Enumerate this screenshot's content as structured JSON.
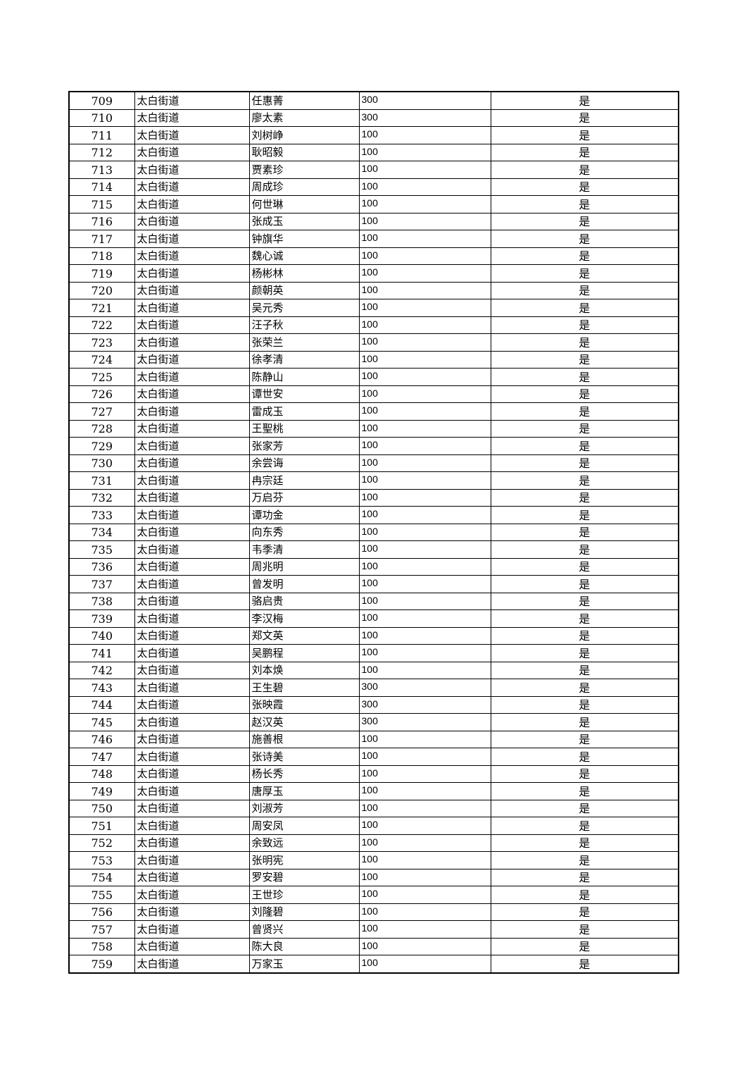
{
  "table": {
    "rows": [
      [
        "709",
        "太白街道",
        "任惠菁",
        "300",
        "是"
      ],
      [
        "710",
        "太白街道",
        "廖太素",
        "300",
        "是"
      ],
      [
        "711",
        "太白街道",
        "刘树峥",
        "100",
        "是"
      ],
      [
        "712",
        "太白街道",
        "耿昭毅",
        "100",
        "是"
      ],
      [
        "713",
        "太白街道",
        "贾素珍",
        "100",
        "是"
      ],
      [
        "714",
        "太白街道",
        "周成珍",
        "100",
        "是"
      ],
      [
        "715",
        "太白街道",
        "何世琳",
        "100",
        "是"
      ],
      [
        "716",
        "太白街道",
        "张成玉",
        "100",
        "是"
      ],
      [
        "717",
        "太白街道",
        "钟旗华",
        "100",
        "是"
      ],
      [
        "718",
        "太白街道",
        "魏心诚",
        "100",
        "是"
      ],
      [
        "719",
        "太白街道",
        "杨彬林",
        "100",
        "是"
      ],
      [
        "720",
        "太白街道",
        "颜朝英",
        "100",
        "是"
      ],
      [
        "721",
        "太白街道",
        "吴元秀",
        "100",
        "是"
      ],
      [
        "722",
        "太白街道",
        "汪子秋",
        "100",
        "是"
      ],
      [
        "723",
        "太白街道",
        "张荣兰",
        "100",
        "是"
      ],
      [
        "724",
        "太白街道",
        "徐孝清",
        "100",
        "是"
      ],
      [
        "725",
        "太白街道",
        "陈静山",
        "100",
        "是"
      ],
      [
        "726",
        "太白街道",
        "谭世安",
        "100",
        "是"
      ],
      [
        "727",
        "太白街道",
        "雷成玉",
        "100",
        "是"
      ],
      [
        "728",
        "太白街道",
        "王聖桃",
        "100",
        "是"
      ],
      [
        "729",
        "太白街道",
        "张家芳",
        "100",
        "是"
      ],
      [
        "730",
        "太白街道",
        "余尝诲",
        "100",
        "是"
      ],
      [
        "731",
        "太白街道",
        "冉宗廷",
        "100",
        "是"
      ],
      [
        "732",
        "太白街道",
        "万启芬",
        "100",
        "是"
      ],
      [
        "733",
        "太白街道",
        "谭功金",
        "100",
        "是"
      ],
      [
        "734",
        "太白街道",
        "向东秀",
        "100",
        "是"
      ],
      [
        "735",
        "太白街道",
        "韦季清",
        "100",
        "是"
      ],
      [
        "736",
        "太白街道",
        "周兆明",
        "100",
        "是"
      ],
      [
        "737",
        "太白街道",
        "曾发明",
        "100",
        "是"
      ],
      [
        "738",
        "太白街道",
        "骆启贵",
        "100",
        "是"
      ],
      [
        "739",
        "太白街道",
        "李汉梅",
        "100",
        "是"
      ],
      [
        "740",
        "太白街道",
        "郑文英",
        "100",
        "是"
      ],
      [
        "741",
        "太白街道",
        "吴鹏程",
        "100",
        "是"
      ],
      [
        "742",
        "太白街道",
        "刘本焕",
        "100",
        "是"
      ],
      [
        "743",
        "太白街道",
        "王生碧",
        "300",
        "是"
      ],
      [
        "744",
        "太白街道",
        "张映霞",
        "300",
        "是"
      ],
      [
        "745",
        "太白街道",
        "赵汉英",
        "300",
        "是"
      ],
      [
        "746",
        "太白街道",
        "施善根",
        "100",
        "是"
      ],
      [
        "747",
        "太白街道",
        "张诗美",
        "100",
        "是"
      ],
      [
        "748",
        "太白街道",
        "杨长秀",
        "100",
        "是"
      ],
      [
        "749",
        "太白街道",
        "唐厚玉",
        "100",
        "是"
      ],
      [
        "750",
        "太白街道",
        "刘淑芳",
        "100",
        "是"
      ],
      [
        "751",
        "太白街道",
        "周安凤",
        "100",
        "是"
      ],
      [
        "752",
        "太白街道",
        "余致远",
        "100",
        "是"
      ],
      [
        "753",
        "太白街道",
        "张明宪",
        "100",
        "是"
      ],
      [
        "754",
        "太白街道",
        "罗安碧",
        "100",
        "是"
      ],
      [
        "755",
        "太白街道",
        "王世珍",
        "100",
        "是"
      ],
      [
        "756",
        "太白街道",
        "刘隆碧",
        "100",
        "是"
      ],
      [
        "757",
        "太白街道",
        "曾贤兴",
        "100",
        "是"
      ],
      [
        "758",
        "太白街道",
        "陈大良",
        "100",
        "是"
      ],
      [
        "759",
        "太白街道",
        "万家玉",
        "100",
        "是"
      ]
    ]
  }
}
